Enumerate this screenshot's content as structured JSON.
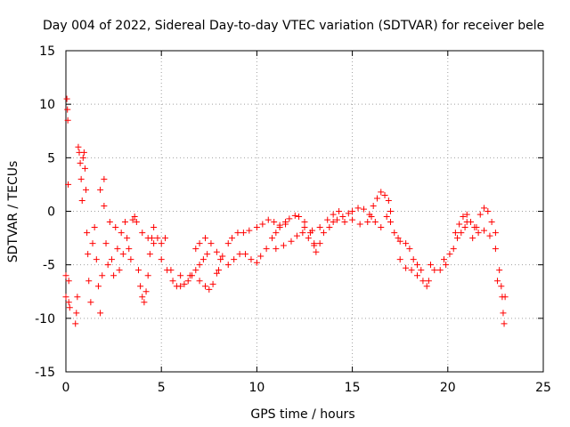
{
  "chart_data": {
    "type": "scatter",
    "title": "Day 004 of 2022, Sidereal Day-to-day VTEC variation (SDTVAR) for receiver bele",
    "xlabel": "GPS time / hours",
    "ylabel": "SDTVAR / TECUs",
    "xlim": [
      0,
      25
    ],
    "ylim": [
      -15,
      15
    ],
    "grid": true,
    "marker": "plus",
    "color": "#ff0000",
    "x_ticks": [
      0,
      5,
      10,
      15,
      20,
      25
    ],
    "x_tick_labels": [
      "0",
      "5",
      "10",
      "15",
      "20",
      "25"
    ],
    "y_ticks": [
      -15,
      -10,
      -5,
      0,
      5,
      10,
      15
    ],
    "y_tick_labels": [
      "-15",
      "-10",
      "-5",
      "0",
      "5",
      "10",
      "15"
    ],
    "series": [
      {
        "name": "SDTVAR",
        "points": [
          [
            0.0,
            -6.0
          ],
          [
            0.0,
            -8.0
          ],
          [
            0.05,
            10.5
          ],
          [
            0.08,
            9.5
          ],
          [
            0.1,
            8.5
          ],
          [
            0.12,
            2.5
          ],
          [
            0.15,
            -6.5
          ],
          [
            0.15,
            -8.5
          ],
          [
            0.2,
            -9.0
          ],
          [
            0.5,
            -10.5
          ],
          [
            0.55,
            -9.5
          ],
          [
            0.6,
            -8.0
          ],
          [
            0.65,
            6.0
          ],
          [
            0.7,
            5.5
          ],
          [
            0.75,
            4.5
          ],
          [
            0.8,
            3.0
          ],
          [
            0.85,
            1.0
          ],
          [
            0.9,
            5.0
          ],
          [
            0.95,
            5.5
          ],
          [
            1.0,
            4.0
          ],
          [
            1.05,
            2.0
          ],
          [
            1.1,
            -2.0
          ],
          [
            1.15,
            -4.0
          ],
          [
            1.2,
            -6.5
          ],
          [
            1.3,
            -8.5
          ],
          [
            1.4,
            -3.0
          ],
          [
            1.5,
            -1.5
          ],
          [
            1.6,
            -4.5
          ],
          [
            1.7,
            -7.0
          ],
          [
            1.8,
            -9.5
          ],
          [
            1.9,
            -6.0
          ],
          [
            1.8,
            2.0
          ],
          [
            2.0,
            0.5
          ],
          [
            2.1,
            -3.0
          ],
          [
            2.2,
            -5.0
          ],
          [
            2.0,
            3.0
          ],
          [
            2.3,
            -1.0
          ],
          [
            2.4,
            -4.5
          ],
          [
            2.5,
            -6.0
          ],
          [
            2.6,
            -1.5
          ],
          [
            2.7,
            -3.5
          ],
          [
            2.8,
            -5.5
          ],
          [
            2.9,
            -2.0
          ],
          [
            3.0,
            -4.0
          ],
          [
            3.1,
            -1.0
          ],
          [
            3.2,
            -2.5
          ],
          [
            3.3,
            -3.5
          ],
          [
            3.4,
            -4.5
          ],
          [
            3.5,
            -0.8
          ],
          [
            3.6,
            -0.5
          ],
          [
            3.7,
            -1.0
          ],
          [
            3.8,
            -5.5
          ],
          [
            3.9,
            -7.0
          ],
          [
            4.0,
            -8.0
          ],
          [
            4.1,
            -8.5
          ],
          [
            4.2,
            -7.5
          ],
          [
            4.3,
            -6.0
          ],
          [
            4.4,
            -4.0
          ],
          [
            4.5,
            -2.5
          ],
          [
            4.6,
            -1.5
          ],
          [
            4.8,
            -2.5
          ],
          [
            5.0,
            -3.0
          ],
          [
            5.2,
            -2.5
          ],
          [
            4.0,
            -2.0
          ],
          [
            4.3,
            -2.5
          ],
          [
            4.6,
            -3.0
          ],
          [
            5.0,
            -4.5
          ],
          [
            5.3,
            -5.5
          ],
          [
            5.6,
            -6.5
          ],
          [
            5.8,
            -7.0
          ],
          [
            6.0,
            -7.0
          ],
          [
            6.2,
            -6.8
          ],
          [
            6.4,
            -6.5
          ],
          [
            6.6,
            -6.0
          ],
          [
            6.8,
            -5.5
          ],
          [
            5.5,
            -5.5
          ],
          [
            6.0,
            -6.0
          ],
          [
            6.5,
            -6.0
          ],
          [
            7.0,
            -5.0
          ],
          [
            7.2,
            -4.5
          ],
          [
            7.4,
            -4.0
          ],
          [
            7.0,
            -6.5
          ],
          [
            7.3,
            -7.0
          ],
          [
            7.5,
            -7.3
          ],
          [
            7.7,
            -6.8
          ],
          [
            7.9,
            -5.8
          ],
          [
            8.0,
            -5.5
          ],
          [
            6.8,
            -3.5
          ],
          [
            7.0,
            -3.0
          ],
          [
            7.3,
            -2.5
          ],
          [
            7.6,
            -3.0
          ],
          [
            7.9,
            -3.8
          ],
          [
            8.1,
            -4.5
          ],
          [
            8.2,
            -4.2
          ],
          [
            8.5,
            -3.0
          ],
          [
            8.7,
            -2.5
          ],
          [
            9.0,
            -2.0
          ],
          [
            9.3,
            -2.0
          ],
          [
            9.6,
            -1.8
          ],
          [
            8.5,
            -5.0
          ],
          [
            8.8,
            -4.5
          ],
          [
            9.1,
            -4.0
          ],
          [
            9.4,
            -4.0
          ],
          [
            9.7,
            -4.5
          ],
          [
            10.0,
            -4.8
          ],
          [
            10.2,
            -4.2
          ],
          [
            10.5,
            -3.5
          ],
          [
            10.8,
            -2.5
          ],
          [
            11.0,
            -2.0
          ],
          [
            11.2,
            -1.5
          ],
          [
            11.5,
            -1.2
          ],
          [
            10.0,
            -1.5
          ],
          [
            10.3,
            -1.2
          ],
          [
            10.6,
            -0.8
          ],
          [
            10.9,
            -1.0
          ],
          [
            11.2,
            -1.3
          ],
          [
            11.5,
            -1.0
          ],
          [
            11.7,
            -0.7
          ],
          [
            12.0,
            -0.4
          ],
          [
            12.2,
            -0.5
          ],
          [
            12.5,
            -1.0
          ],
          [
            12.8,
            -2.0
          ],
          [
            13.0,
            -3.0
          ],
          [
            11.0,
            -3.5
          ],
          [
            11.4,
            -3.2
          ],
          [
            11.8,
            -2.8
          ],
          [
            12.1,
            -2.3
          ],
          [
            12.4,
            -2.0
          ],
          [
            12.7,
            -2.5
          ],
          [
            13.0,
            -3.2
          ],
          [
            13.1,
            -3.8
          ],
          [
            13.3,
            -3.0
          ],
          [
            13.5,
            -2.0
          ],
          [
            13.8,
            -1.5
          ],
          [
            14.0,
            -1.0
          ],
          [
            12.5,
            -1.5
          ],
          [
            12.9,
            -1.8
          ],
          [
            13.3,
            -1.5
          ],
          [
            13.7,
            -0.8
          ],
          [
            14.0,
            -0.3
          ],
          [
            14.3,
            0.0
          ],
          [
            14.5,
            -0.5
          ],
          [
            14.8,
            -0.2
          ],
          [
            15.0,
            0.0
          ],
          [
            15.3,
            0.3
          ],
          [
            15.6,
            0.2
          ],
          [
            15.9,
            -0.3
          ],
          [
            14.2,
            -0.8
          ],
          [
            14.6,
            -1.0
          ],
          [
            15.0,
            -0.8
          ],
          [
            15.4,
            -1.2
          ],
          [
            15.8,
            -1.0
          ],
          [
            16.0,
            -0.5
          ],
          [
            16.1,
            0.5
          ],
          [
            16.3,
            1.2
          ],
          [
            16.5,
            1.8
          ],
          [
            16.7,
            1.5
          ],
          [
            16.9,
            1.0
          ],
          [
            17.0,
            0.0
          ],
          [
            16.2,
            -1.0
          ],
          [
            16.5,
            -1.5
          ],
          [
            16.8,
            -0.5
          ],
          [
            17.0,
            -1.0
          ],
          [
            17.2,
            -2.0
          ],
          [
            17.4,
            -2.5
          ],
          [
            17.5,
            -2.8
          ],
          [
            17.8,
            -3.0
          ],
          [
            18.0,
            -3.5
          ],
          [
            18.2,
            -4.5
          ],
          [
            18.4,
            -5.0
          ],
          [
            18.6,
            -5.5
          ],
          [
            17.5,
            -4.5
          ],
          [
            17.8,
            -5.3
          ],
          [
            18.1,
            -5.5
          ],
          [
            18.4,
            -6.0
          ],
          [
            18.7,
            -6.5
          ],
          [
            18.9,
            -7.0
          ],
          [
            19.0,
            -6.5
          ],
          [
            19.1,
            -5.0
          ],
          [
            19.3,
            -5.5
          ],
          [
            19.6,
            -5.5
          ],
          [
            19.8,
            -4.5
          ],
          [
            19.9,
            -5.0
          ],
          [
            20.1,
            -4.0
          ],
          [
            20.3,
            -3.5
          ],
          [
            20.5,
            -2.5
          ],
          [
            20.7,
            -2.0
          ],
          [
            20.9,
            -1.5
          ],
          [
            21.0,
            -1.0
          ],
          [
            20.4,
            -2.0
          ],
          [
            20.6,
            -1.2
          ],
          [
            20.8,
            -0.5
          ],
          [
            21.0,
            -0.3
          ],
          [
            21.2,
            -1.0
          ],
          [
            21.4,
            -1.5
          ],
          [
            21.5,
            -1.5
          ],
          [
            21.7,
            -0.3
          ],
          [
            21.9,
            0.3
          ],
          [
            22.1,
            0.0
          ],
          [
            22.3,
            -1.0
          ],
          [
            22.5,
            -2.0
          ],
          [
            21.3,
            -2.5
          ],
          [
            21.6,
            -2.0
          ],
          [
            21.9,
            -1.8
          ],
          [
            22.2,
            -2.3
          ],
          [
            22.5,
            -3.5
          ],
          [
            22.7,
            -5.5
          ],
          [
            22.6,
            -6.5
          ],
          [
            22.8,
            -7.0
          ],
          [
            22.85,
            -8.0
          ],
          [
            22.9,
            -9.5
          ],
          [
            22.95,
            -10.5
          ],
          [
            23.0,
            -8.0
          ]
        ]
      }
    ]
  }
}
